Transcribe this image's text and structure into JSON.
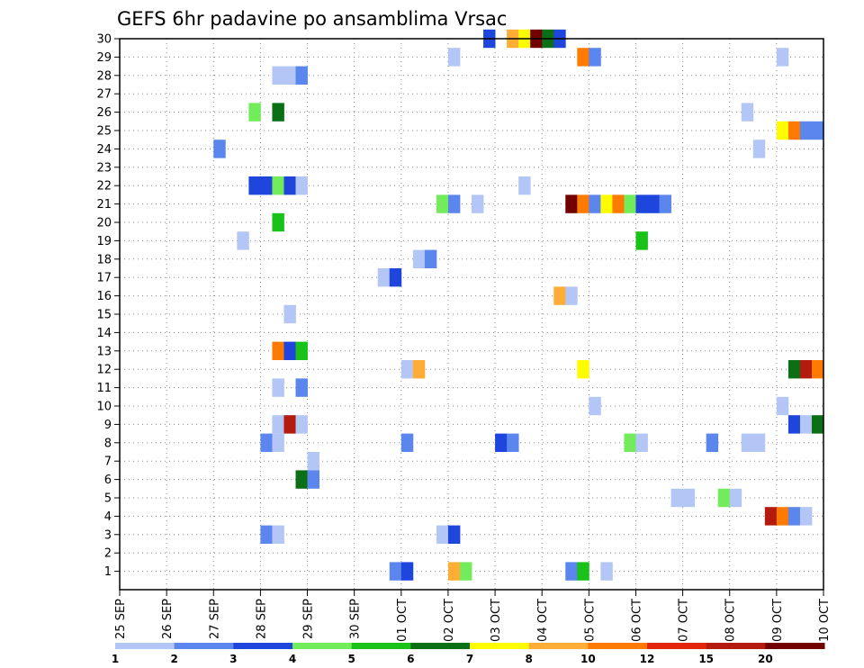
{
  "chart_data": {
    "type": "heatmap",
    "title": "GEFS 6hr padavine po ansamblima Vrsac",
    "xlabel": "",
    "ylabel": "",
    "x_tick_labels": [
      "25 SEP",
      "26 SEP",
      "27 SEP",
      "28 SEP",
      "29 SEP",
      "30 SEP",
      "01 OCT",
      "02 OCT",
      "03 OCT",
      "04 OCT",
      "05 OCT",
      "06 OCT",
      "07 OCT",
      "08 OCT",
      "09 OCT",
      "10 OCT"
    ],
    "xlim": [
      0,
      60
    ],
    "ylim": [
      0,
      30
    ],
    "y_ticks": [
      1,
      2,
      3,
      4,
      5,
      6,
      7,
      8,
      9,
      10,
      11,
      12,
      13,
      14,
      15,
      16,
      17,
      18,
      19,
      20,
      21,
      22,
      23,
      24,
      25,
      26,
      27,
      28,
      29,
      30
    ],
    "grid": true,
    "legend": {
      "placement": "bottom",
      "labels": [
        "1",
        "2",
        "3",
        "4",
        "5",
        "6",
        "7",
        "8",
        "10",
        "12",
        "15",
        "20"
      ],
      "colors": [
        "#b4c6f5",
        "#5b86ee",
        "#1f46dc",
        "#72ec5a",
        "#19c219",
        "#0b6f15",
        "#fffc00",
        "#ffad37",
        "#ff7a00",
        "#e3260a",
        "#b41a0e",
        "#720000"
      ]
    },
    "cells": [
      {
        "m": 30,
        "t": 31,
        "v": 3
      },
      {
        "m": 30,
        "t": 33,
        "v": 8
      },
      {
        "m": 30,
        "t": 34,
        "v": 7
      },
      {
        "m": 30,
        "t": 35,
        "v": 20
      },
      {
        "m": 30,
        "t": 36,
        "v": 6
      },
      {
        "m": 30,
        "t": 37,
        "v": 3
      },
      {
        "m": 29,
        "t": 28,
        "v": 1
      },
      {
        "m": 29,
        "t": 39,
        "v": 10
      },
      {
        "m": 29,
        "t": 40,
        "v": 2
      },
      {
        "m": 29,
        "t": 56,
        "v": 1
      },
      {
        "m": 28,
        "t": 13,
        "v": 1
      },
      {
        "m": 28,
        "t": 14,
        "v": 1
      },
      {
        "m": 28,
        "t": 15,
        "v": 2
      },
      {
        "m": 26,
        "t": 11,
        "v": 4
      },
      {
        "m": 26,
        "t": 13,
        "v": 6
      },
      {
        "m": 26,
        "t": 53,
        "v": 1
      },
      {
        "m": 25,
        "t": 56,
        "v": 7
      },
      {
        "m": 25,
        "t": 57,
        "v": 10
      },
      {
        "m": 25,
        "t": 58,
        "v": 2
      },
      {
        "m": 25,
        "t": 59,
        "v": 2
      },
      {
        "m": 24,
        "t": 8,
        "v": 2
      },
      {
        "m": 24,
        "t": 54,
        "v": 1
      },
      {
        "m": 22,
        "t": 11,
        "v": 3
      },
      {
        "m": 22,
        "t": 12,
        "v": 3
      },
      {
        "m": 22,
        "t": 13,
        "v": 4
      },
      {
        "m": 22,
        "t": 14,
        "v": 3
      },
      {
        "m": 22,
        "t": 15,
        "v": 1
      },
      {
        "m": 22,
        "t": 34,
        "v": 1
      },
      {
        "m": 21,
        "t": 27,
        "v": 4
      },
      {
        "m": 21,
        "t": 28,
        "v": 2
      },
      {
        "m": 21,
        "t": 30,
        "v": 1
      },
      {
        "m": 21,
        "t": 38,
        "v": 20
      },
      {
        "m": 21,
        "t": 39,
        "v": 10
      },
      {
        "m": 21,
        "t": 40,
        "v": 2
      },
      {
        "m": 21,
        "t": 41,
        "v": 7
      },
      {
        "m": 21,
        "t": 42,
        "v": 10
      },
      {
        "m": 21,
        "t": 43,
        "v": 4
      },
      {
        "m": 21,
        "t": 44,
        "v": 3
      },
      {
        "m": 21,
        "t": 45,
        "v": 3
      },
      {
        "m": 21,
        "t": 46,
        "v": 2
      },
      {
        "m": 20,
        "t": 13,
        "v": 5
      },
      {
        "m": 19,
        "t": 10,
        "v": 1
      },
      {
        "m": 19,
        "t": 44,
        "v": 5
      },
      {
        "m": 18,
        "t": 25,
        "v": 1
      },
      {
        "m": 18,
        "t": 26,
        "v": 2
      },
      {
        "m": 17,
        "t": 22,
        "v": 1
      },
      {
        "m": 17,
        "t": 23,
        "v": 3
      },
      {
        "m": 16,
        "t": 37,
        "v": 8
      },
      {
        "m": 16,
        "t": 38,
        "v": 1
      },
      {
        "m": 15,
        "t": 14,
        "v": 1
      },
      {
        "m": 13,
        "t": 13,
        "v": 10
      },
      {
        "m": 13,
        "t": 14,
        "v": 3
      },
      {
        "m": 13,
        "t": 15,
        "v": 5
      },
      {
        "m": 12,
        "t": 24,
        "v": 1
      },
      {
        "m": 12,
        "t": 25,
        "v": 8
      },
      {
        "m": 12,
        "t": 39,
        "v": 7
      },
      {
        "m": 12,
        "t": 57,
        "v": 6
      },
      {
        "m": 12,
        "t": 58,
        "v": 15
      },
      {
        "m": 12,
        "t": 59,
        "v": 10
      },
      {
        "m": 11,
        "t": 13,
        "v": 1
      },
      {
        "m": 11,
        "t": 15,
        "v": 2
      },
      {
        "m": 10,
        "t": 40,
        "v": 1
      },
      {
        "m": 10,
        "t": 56,
        "v": 1
      },
      {
        "m": 9,
        "t": 13,
        "v": 1
      },
      {
        "m": 9,
        "t": 14,
        "v": 15
      },
      {
        "m": 9,
        "t": 15,
        "v": 1
      },
      {
        "m": 9,
        "t": 57,
        "v": 3
      },
      {
        "m": 9,
        "t": 58,
        "v": 1
      },
      {
        "m": 9,
        "t": 59,
        "v": 6
      },
      {
        "m": 8,
        "t": 12,
        "v": 2
      },
      {
        "m": 8,
        "t": 13,
        "v": 1
      },
      {
        "m": 8,
        "t": 24,
        "v": 2
      },
      {
        "m": 8,
        "t": 32,
        "v": 3
      },
      {
        "m": 8,
        "t": 33,
        "v": 2
      },
      {
        "m": 8,
        "t": 43,
        "v": 4
      },
      {
        "m": 8,
        "t": 44,
        "v": 1
      },
      {
        "m": 8,
        "t": 50,
        "v": 2
      },
      {
        "m": 8,
        "t": 53,
        "v": 1
      },
      {
        "m": 8,
        "t": 54,
        "v": 1
      },
      {
        "m": 7,
        "t": 16,
        "v": 1
      },
      {
        "m": 6,
        "t": 15,
        "v": 6
      },
      {
        "m": 6,
        "t": 16,
        "v": 2
      },
      {
        "m": 5,
        "t": 47,
        "v": 1
      },
      {
        "m": 5,
        "t": 48,
        "v": 1
      },
      {
        "m": 5,
        "t": 51,
        "v": 4
      },
      {
        "m": 5,
        "t": 52,
        "v": 1
      },
      {
        "m": 4,
        "t": 55,
        "v": 15
      },
      {
        "m": 4,
        "t": 56,
        "v": 10
      },
      {
        "m": 4,
        "t": 57,
        "v": 2
      },
      {
        "m": 4,
        "t": 58,
        "v": 1
      },
      {
        "m": 3,
        "t": 12,
        "v": 2
      },
      {
        "m": 3,
        "t": 13,
        "v": 1
      },
      {
        "m": 3,
        "t": 27,
        "v": 1
      },
      {
        "m": 3,
        "t": 28,
        "v": 3
      },
      {
        "m": 1,
        "t": 23,
        "v": 2
      },
      {
        "m": 1,
        "t": 24,
        "v": 3
      },
      {
        "m": 1,
        "t": 28,
        "v": 8
      },
      {
        "m": 1,
        "t": 29,
        "v": 4
      },
      {
        "m": 1,
        "t": 38,
        "v": 2
      },
      {
        "m": 1,
        "t": 39,
        "v": 5
      },
      {
        "m": 1,
        "t": 41,
        "v": 1
      }
    ]
  }
}
